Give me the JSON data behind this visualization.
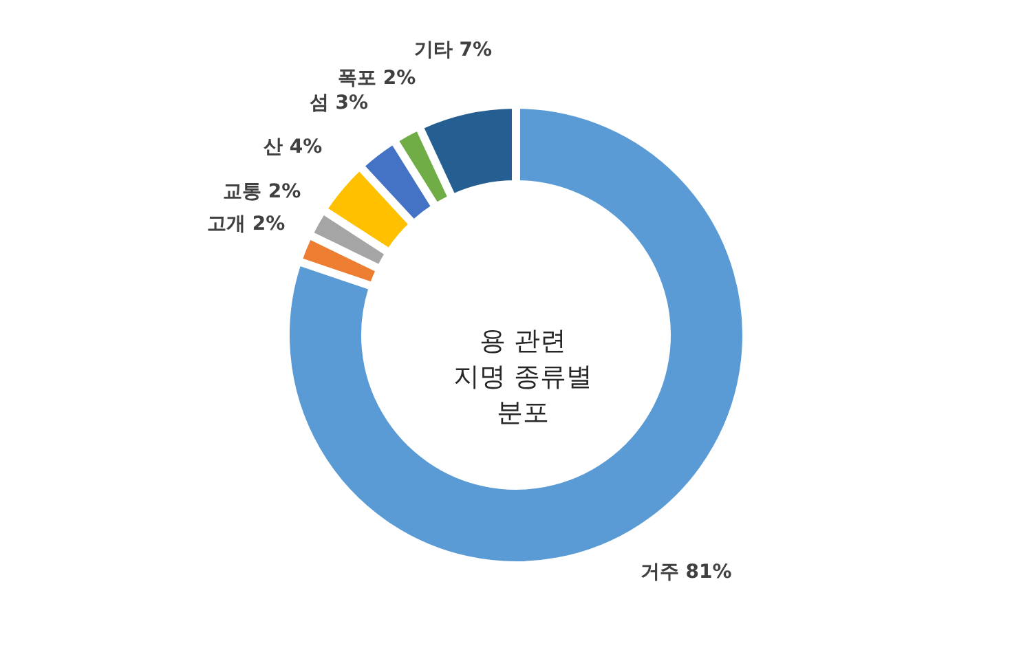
{
  "chart_data": {
    "type": "donut",
    "title": "용 관련\n지명 종류별\n분포",
    "categories": [
      "거주",
      "고개",
      "교통",
      "산",
      "섬",
      "폭포",
      "기타"
    ],
    "values": [
      81,
      2,
      2,
      4,
      3,
      2,
      7
    ],
    "value_labels": [
      "81%",
      "2%",
      "2%",
      "4%",
      "3%",
      "2%",
      "7%"
    ],
    "colors": [
      "#5b9bd5",
      "#ed7d31",
      "#a5a5a5",
      "#ffc000",
      "#4472c4",
      "#70ad47",
      "#255e91"
    ],
    "legend": false
  }
}
